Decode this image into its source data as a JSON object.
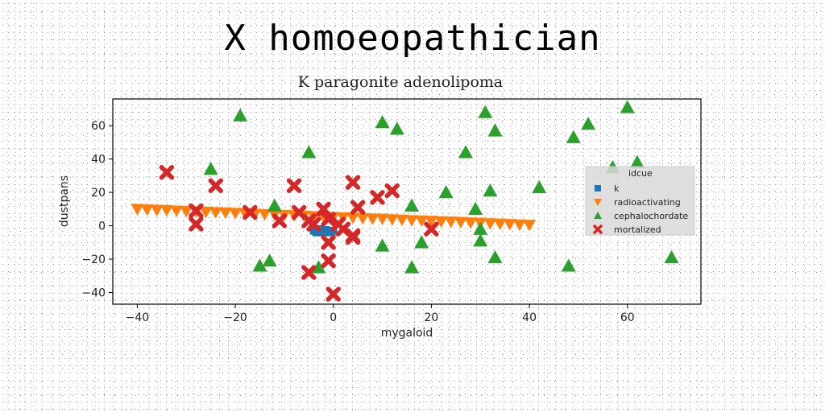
{
  "figure_title": "X homoeopathician",
  "chart_data": {
    "type": "scatter",
    "title": "K paragonite adenolipoma",
    "xlabel": "mygaloid",
    "ylabel": "dustpans",
    "xlim": [
      -45,
      75
    ],
    "ylim": [
      -47,
      76
    ],
    "xticks": [
      -40,
      -20,
      0,
      20,
      40,
      60
    ],
    "yticks": [
      -40,
      -20,
      0,
      20,
      40,
      60
    ],
    "xtick_labels": [
      "−40",
      "−20",
      "0",
      "20",
      "40",
      "60"
    ],
    "ytick_labels": [
      "−40",
      "−20",
      "0",
      "20",
      "40",
      "60"
    ],
    "grid": false,
    "legend": {
      "title": "idcue",
      "position": "right"
    },
    "series": [
      {
        "name": "k",
        "marker": "square",
        "color": "#1f77b4",
        "points": [
          [
            -4,
            -3
          ],
          [
            -3.5,
            -4
          ],
          [
            -2.5,
            -3
          ],
          [
            -2,
            -4
          ],
          [
            -1,
            -3
          ],
          [
            -0.5,
            -4
          ],
          [
            0,
            -3
          ],
          [
            -3,
            -2
          ],
          [
            -1.5,
            -2.5
          ]
        ]
      },
      {
        "name": "radioactivating",
        "marker": "triangle-down",
        "color": "#ff7f0e",
        "points": [
          [
            -40,
            10
          ],
          [
            -38,
            9.8
          ],
          [
            -36,
            9.5
          ],
          [
            -34,
            9.3
          ],
          [
            -32,
            9
          ],
          [
            -30,
            8.8
          ],
          [
            -28,
            8.6
          ],
          [
            -26,
            8.3
          ],
          [
            -24,
            8.1
          ],
          [
            -22,
            7.9
          ],
          [
            -20,
            7.6
          ],
          [
            -18,
            7.4
          ],
          [
            -16,
            7.1
          ],
          [
            -14,
            6.9
          ],
          [
            -12,
            6.7
          ],
          [
            -10,
            6.4
          ],
          [
            -8,
            6.2
          ],
          [
            -6,
            6
          ],
          [
            -4,
            5.7
          ],
          [
            -2,
            5.5
          ],
          [
            0,
            5.2
          ],
          [
            2,
            5
          ],
          [
            4,
            4.8
          ],
          [
            6,
            4.5
          ],
          [
            8,
            4.3
          ],
          [
            10,
            4.1
          ],
          [
            12,
            3.8
          ],
          [
            14,
            3.6
          ],
          [
            16,
            3.3
          ],
          [
            18,
            3.1
          ],
          [
            20,
            2.9
          ],
          [
            22,
            2.6
          ],
          [
            24,
            2.4
          ],
          [
            26,
            2.2
          ],
          [
            28,
            1.9
          ],
          [
            30,
            1.7
          ],
          [
            32,
            1.4
          ],
          [
            34,
            1.2
          ],
          [
            36,
            1
          ],
          [
            38,
            0.7
          ],
          [
            40,
            0.5
          ]
        ]
      },
      {
        "name": "cephalochordate",
        "marker": "triangle-up",
        "color": "#2ca02c",
        "points": [
          [
            -19,
            66
          ],
          [
            -25,
            34
          ],
          [
            -15,
            -24
          ],
          [
            -13,
            -21
          ],
          [
            -12,
            12
          ],
          [
            -5,
            44
          ],
          [
            -3,
            -25
          ],
          [
            10,
            62
          ],
          [
            13,
            58
          ],
          [
            10,
            -12
          ],
          [
            16,
            12
          ],
          [
            16,
            -25
          ],
          [
            18,
            -10
          ],
          [
            23,
            20
          ],
          [
            27,
            44
          ],
          [
            29,
            10
          ],
          [
            30,
            -2
          ],
          [
            30,
            -9
          ],
          [
            31,
            68
          ],
          [
            32,
            21
          ],
          [
            33,
            -19
          ],
          [
            33,
            57
          ],
          [
            42,
            23
          ],
          [
            48,
            -24
          ],
          [
            49,
            53
          ],
          [
            52,
            61
          ],
          [
            57,
            35
          ],
          [
            60,
            71
          ],
          [
            62,
            38
          ],
          [
            69,
            -19
          ]
        ]
      },
      {
        "name": "mortalized",
        "marker": "x",
        "color": "#d62728",
        "points": [
          [
            -34,
            32
          ],
          [
            -28,
            9
          ],
          [
            -28,
            1
          ],
          [
            -24,
            24
          ],
          [
            -17,
            8
          ],
          [
            -11,
            3
          ],
          [
            -8,
            24
          ],
          [
            -7,
            8
          ],
          [
            -5,
            3
          ],
          [
            -5,
            -28
          ],
          [
            -4,
            1
          ],
          [
            -2,
            10
          ],
          [
            -1,
            4
          ],
          [
            -1,
            -10
          ],
          [
            -1,
            -21
          ],
          [
            0,
            -41
          ],
          [
            1,
            1
          ],
          [
            2,
            -2
          ],
          [
            4,
            26
          ],
          [
            4,
            -6
          ],
          [
            5,
            11
          ],
          [
            4,
            -7
          ],
          [
            9,
            17
          ],
          [
            12,
            21
          ],
          [
            20,
            -2
          ]
        ]
      }
    ]
  }
}
